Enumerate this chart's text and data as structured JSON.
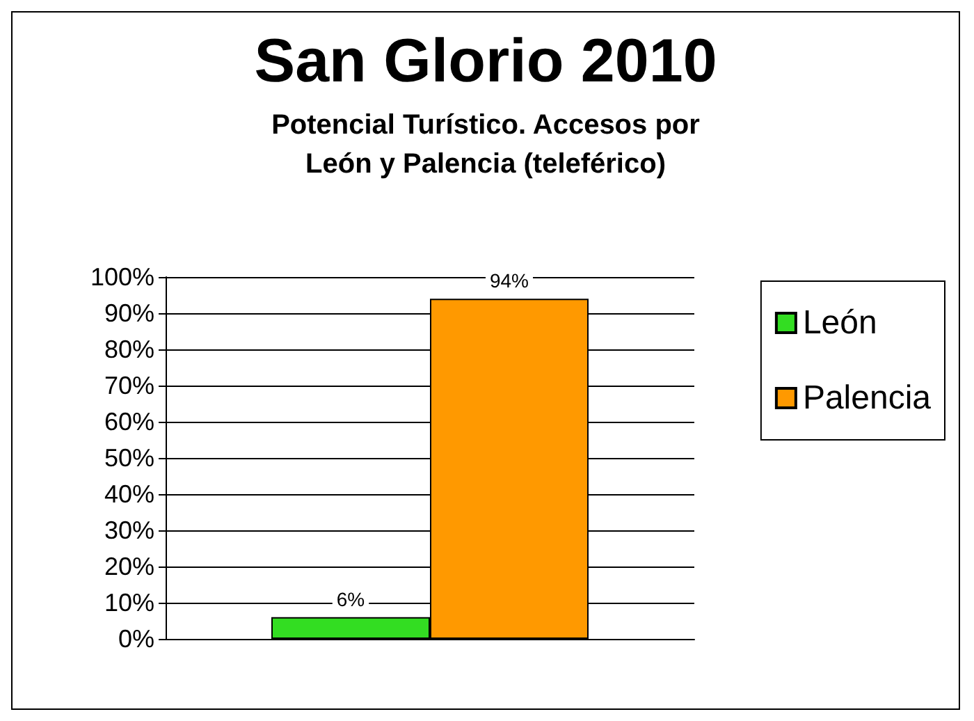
{
  "chart_data": {
    "type": "bar",
    "title": "San Glorio 2010",
    "subtitle": "Potencial Turístico. Accesos por\nLeón y Palencia (teleférico)",
    "categories": [
      null
    ],
    "series": [
      {
        "name": "León",
        "color": "#33dd22",
        "values": [
          6
        ],
        "value_labels": [
          "6%"
        ]
      },
      {
        "name": "Palencia",
        "color": "#ff9900",
        "values": [
          94
        ],
        "value_labels": [
          "94%"
        ]
      }
    ],
    "ylim": [
      0,
      100
    ],
    "yticks": [
      {
        "value": 0,
        "label": "0%"
      },
      {
        "value": 10,
        "label": "10%"
      },
      {
        "value": 20,
        "label": "20%"
      },
      {
        "value": 30,
        "label": "30%"
      },
      {
        "value": 40,
        "label": "40%"
      },
      {
        "value": 50,
        "label": "50%"
      },
      {
        "value": 60,
        "label": "60%"
      },
      {
        "value": 70,
        "label": "70%"
      },
      {
        "value": 80,
        "label": "80%"
      },
      {
        "value": 90,
        "label": "90%"
      },
      {
        "value": 100,
        "label": "100%"
      }
    ],
    "grid": "y",
    "legend": "right"
  }
}
